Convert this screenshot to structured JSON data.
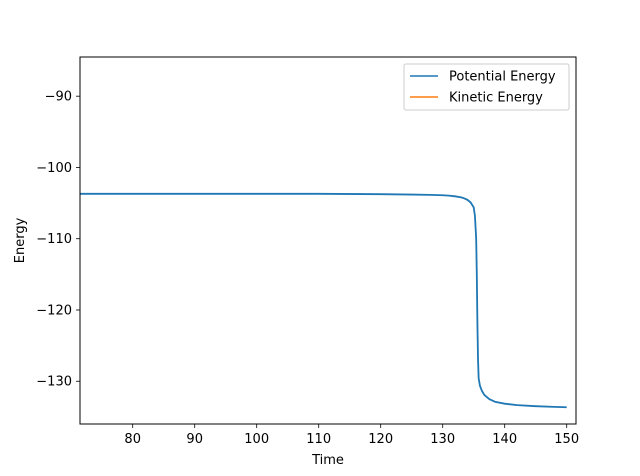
{
  "chart_data": {
    "type": "line",
    "xlabel": "Time",
    "ylabel": "Energy",
    "xlim": [
      71.5,
      151.5
    ],
    "ylim": [
      -136,
      -84.5
    ],
    "xticks": [
      80,
      90,
      100,
      110,
      120,
      130,
      140,
      150
    ],
    "yticks": [
      -90,
      -100,
      -110,
      -120,
      -130
    ],
    "xtick_labels": [
      "80",
      "90",
      "100",
      "110",
      "120",
      "130",
      "140",
      "150"
    ],
    "ytick_labels": [
      "−90",
      "−100",
      "−110",
      "−120",
      "−130"
    ],
    "legend_position": "top-right",
    "grid": false,
    "series": [
      {
        "name": "Potential Energy",
        "color": "#1f77b4",
        "x": [
          71.5,
          80,
          90,
          100,
          110,
          120,
          125,
          128,
          130,
          131,
          132,
          133,
          133.5,
          134,
          134.5,
          135,
          135.2,
          135.4,
          135.5,
          135.6,
          135.7,
          135.8,
          136,
          136.3,
          136.7,
          137.5,
          138.5,
          140,
          142,
          145,
          148,
          150
        ],
        "y": [
          -103.7,
          -103.7,
          -103.7,
          -103.7,
          -103.7,
          -103.75,
          -103.8,
          -103.85,
          -103.9,
          -103.95,
          -104.05,
          -104.2,
          -104.35,
          -104.55,
          -104.9,
          -105.6,
          -106.8,
          -110,
          -115,
          -122,
          -127,
          -129.6,
          -130.6,
          -131.3,
          -131.9,
          -132.5,
          -132.9,
          -133.15,
          -133.35,
          -133.5,
          -133.6,
          -133.65
        ]
      },
      {
        "name": "Kinetic Energy",
        "color": "#ff7f0e",
        "x": [],
        "y": []
      }
    ]
  }
}
